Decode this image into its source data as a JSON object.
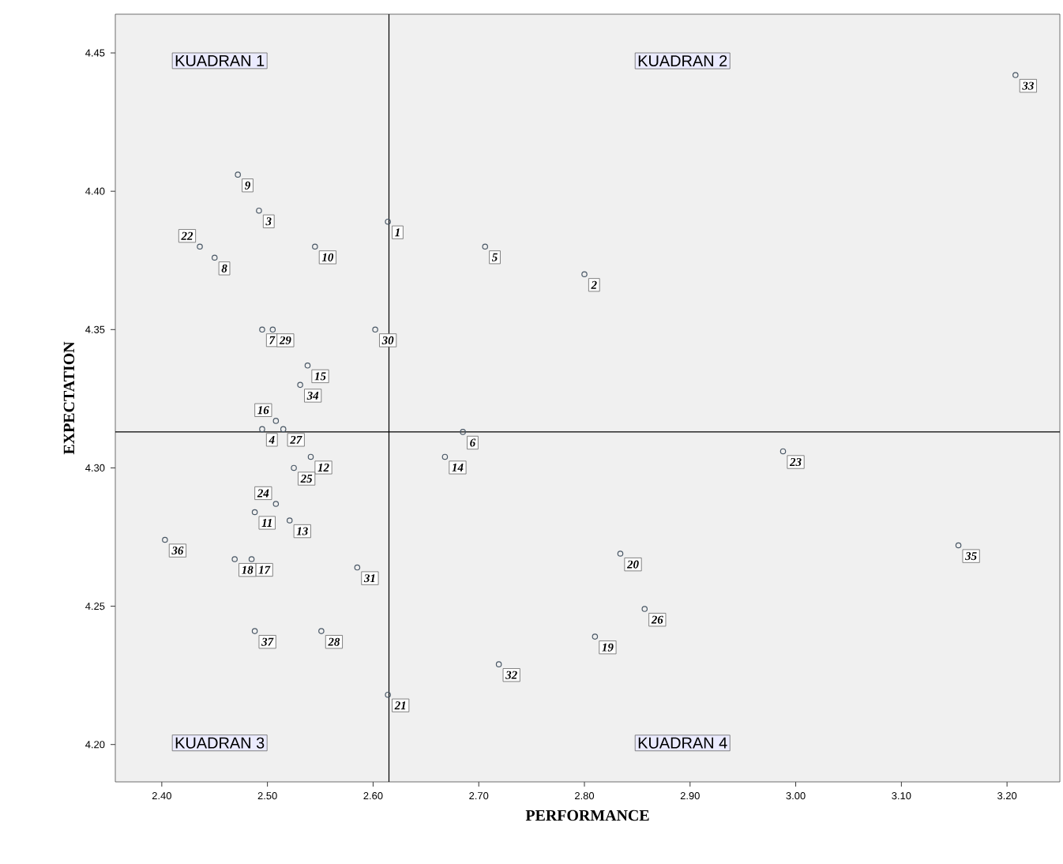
{
  "chart_data": {
    "type": "scatter",
    "xlabel": "PERFORMANCE",
    "ylabel": "EXPECTATION",
    "xlim": [
      2.356,
      3.25
    ],
    "ylim": [
      4.1865,
      4.464
    ],
    "xticks": [
      {
        "value": 2.4,
        "label": "2.40"
      },
      {
        "value": 2.5,
        "label": "2.50"
      },
      {
        "value": 2.6,
        "label": "2.60"
      },
      {
        "value": 2.7,
        "label": "2.70"
      },
      {
        "value": 2.8,
        "label": "2.80"
      },
      {
        "value": 2.9,
        "label": "2.90"
      },
      {
        "value": 3.0,
        "label": "3.00"
      },
      {
        "value": 3.1,
        "label": "3.10"
      },
      {
        "value": 3.2,
        "label": "3.20"
      }
    ],
    "yticks": [
      {
        "value": 4.2,
        "label": "4.20"
      },
      {
        "value": 4.25,
        "label": "4.25"
      },
      {
        "value": 4.3,
        "label": "4.30"
      },
      {
        "value": 4.35,
        "label": "4.35"
      },
      {
        "value": 4.4,
        "label": "4.40"
      },
      {
        "value": 4.45,
        "label": "4.45"
      }
    ],
    "grid": false,
    "marker": "circle",
    "series": [
      {
        "color": "#4a5866",
        "x": [
          2.614,
          2.8,
          2.492,
          2.495,
          2.706,
          2.685,
          2.495,
          2.45,
          2.472,
          2.545,
          2.488,
          2.541,
          2.521,
          2.668,
          2.538,
          2.508,
          2.485,
          2.469,
          2.81,
          2.834,
          2.614,
          2.436,
          2.988,
          2.508,
          2.525,
          2.857,
          2.515,
          2.551,
          2.505,
          2.602,
          2.585,
          2.719,
          3.208,
          2.531,
          3.154,
          2.403,
          2.488
        ],
        "values": [
          4.389,
          4.37,
          4.393,
          4.314,
          4.38,
          4.313,
          4.35,
          4.376,
          4.406,
          4.38,
          4.284,
          4.304,
          4.281,
          4.304,
          4.337,
          4.317,
          4.267,
          4.267,
          4.239,
          4.269,
          4.218,
          4.38,
          4.306,
          4.287,
          4.3,
          4.249,
          4.314,
          4.241,
          4.35,
          4.35,
          4.264,
          4.229,
          4.442,
          4.33,
          4.272,
          4.274,
          4.241
        ]
      }
    ],
    "ref_lines": [
      {
        "axis": "x",
        "value": 2.615,
        "color": "#000000"
      },
      {
        "axis": "y",
        "value": 4.313,
        "color": "#000000"
      }
    ],
    "annotations": [
      "KUADRAN 1",
      "KUADRAN 2",
      "KUADRAN 3",
      "KUADRAN 4",
      {
        "text": "1",
        "x": 2.614,
        "y": 4.389
      },
      {
        "text": "2",
        "x": 2.8,
        "y": 4.37
      },
      {
        "text": "3",
        "x": 2.492,
        "y": 4.393
      },
      {
        "text": "4",
        "x": 2.495,
        "y": 4.314
      },
      {
        "text": "5",
        "x": 2.706,
        "y": 4.38
      },
      {
        "text": "6",
        "x": 2.685,
        "y": 4.313
      },
      {
        "text": "7",
        "x": 2.495,
        "y": 4.35
      },
      {
        "text": "8",
        "x": 2.45,
        "y": 4.376
      },
      {
        "text": "9",
        "x": 2.472,
        "y": 4.406
      },
      {
        "text": "10",
        "x": 2.545,
        "y": 4.38
      },
      {
        "text": "11",
        "x": 2.488,
        "y": 4.284
      },
      {
        "text": "12",
        "x": 2.541,
        "y": 4.304
      },
      {
        "text": "13",
        "x": 2.521,
        "y": 4.281
      },
      {
        "text": "14",
        "x": 2.668,
        "y": 4.304
      },
      {
        "text": "15",
        "x": 2.538,
        "y": 4.337
      },
      {
        "text": "16",
        "x": 2.508,
        "y": 4.317
      },
      {
        "text": "17",
        "x": 2.485,
        "y": 4.267
      },
      {
        "text": "18",
        "x": 2.469,
        "y": 4.267
      },
      {
        "text": "19",
        "x": 2.81,
        "y": 4.239
      },
      {
        "text": "20",
        "x": 2.834,
        "y": 4.269
      },
      {
        "text": "21",
        "x": 2.614,
        "y": 4.218
      },
      {
        "text": "22",
        "x": 2.436,
        "y": 4.38
      },
      {
        "text": "23",
        "x": 2.988,
        "y": 4.306
      },
      {
        "text": "24",
        "x": 2.508,
        "y": 4.287
      },
      {
        "text": "25",
        "x": 2.525,
        "y": 4.3
      },
      {
        "text": "26",
        "x": 2.857,
        "y": 4.249
      },
      {
        "text": "27",
        "x": 2.515,
        "y": 4.314
      },
      {
        "text": "28",
        "x": 2.551,
        "y": 4.241
      },
      {
        "text": "29",
        "x": 2.505,
        "y": 4.35
      },
      {
        "text": "30",
        "x": 2.602,
        "y": 4.35
      },
      {
        "text": "31",
        "x": 2.585,
        "y": 4.264
      },
      {
        "text": "32",
        "x": 2.719,
        "y": 4.229
      },
      {
        "text": "33",
        "x": 3.208,
        "y": 4.442
      },
      {
        "text": "34",
        "x": 2.531,
        "y": 4.33
      },
      {
        "text": "35",
        "x": 3.154,
        "y": 4.272
      },
      {
        "text": "36",
        "x": 2.403,
        "y": 4.274
      },
      {
        "text": "37",
        "x": 2.488,
        "y": 4.241
      }
    ]
  }
}
